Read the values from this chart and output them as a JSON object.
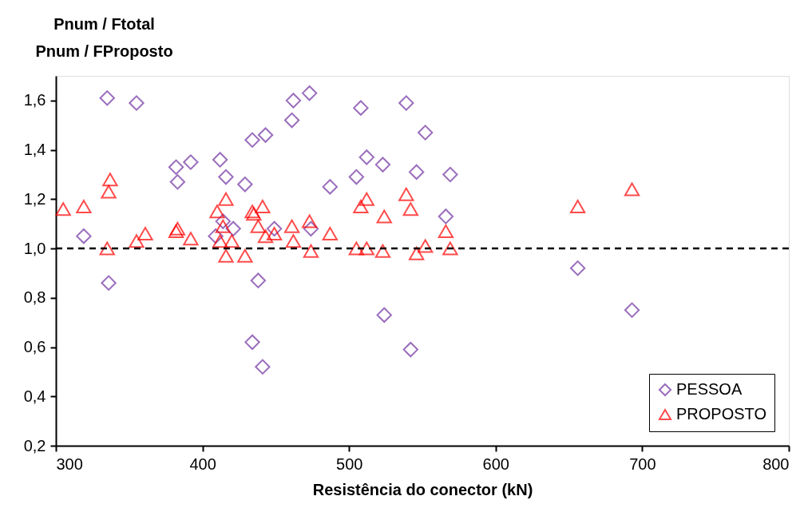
{
  "chart_data": {
    "type": "scatter",
    "xlabel": "Resistência do conector (kN)",
    "ylabel": "Pnum / Ftotal\nPnum / FProposto",
    "xlim": [
      300,
      800
    ],
    "xticks": [
      300,
      400,
      500,
      600,
      700,
      800
    ],
    "ylim": [
      0.2,
      1.7
    ],
    "yticks": [
      {
        "value": 0.2,
        "label": "0,2"
      },
      {
        "value": 0.4,
        "label": "0,4"
      },
      {
        "value": 0.6,
        "label": "0,6"
      },
      {
        "value": 0.8,
        "label": "0,8"
      },
      {
        "value": 1.0,
        "label": "1,0"
      },
      {
        "value": 1.2,
        "label": "1,2"
      },
      {
        "value": 1.4,
        "label": "1,4"
      },
      {
        "value": 1.6,
        "label": "1,6"
      }
    ],
    "grid": false,
    "legend": "bottom right",
    "ref_lines": [
      {
        "axis": "y",
        "value": 1.0,
        "color": "#000000",
        "line_style": "dashed"
      }
    ],
    "series": [
      {
        "name": "PESSOA",
        "color": "#7030a0",
        "marker": "diamond",
        "x": [
          335,
          355,
          319,
          336,
          382,
          383,
          392,
          412,
          416,
          429,
          434,
          443,
          461,
          462,
          409,
          414,
          421,
          449,
          438,
          434,
          441,
          473,
          508,
          539,
          552,
          512,
          523,
          505,
          487,
          546,
          569,
          566,
          474,
          524,
          542,
          656,
          693
        ],
        "values": [
          1.61,
          1.59,
          1.05,
          0.86,
          1.33,
          1.27,
          1.35,
          1.36,
          1.29,
          1.26,
          1.44,
          1.46,
          1.52,
          1.6,
          1.05,
          1.11,
          1.08,
          1.08,
          0.87,
          0.62,
          0.52,
          1.63,
          1.57,
          1.59,
          1.47,
          1.37,
          1.34,
          1.29,
          1.25,
          1.31,
          1.3,
          1.13,
          1.08,
          0.73,
          0.59,
          0.92,
          0.75
        ]
      },
      {
        "name": "PROPOSTO",
        "color": "#ff0000",
        "marker": "triangle",
        "x": [
          305,
          319,
          337,
          336,
          335,
          355,
          361,
          382,
          383,
          392,
          410,
          416,
          414,
          412,
          416,
          420,
          429,
          434,
          435,
          441,
          438,
          443,
          449,
          461,
          462,
          473,
          474,
          487,
          505,
          508,
          512,
          512,
          523,
          524,
          539,
          542,
          546,
          552,
          566,
          569,
          656,
          693
        ],
        "values": [
          1.16,
          1.17,
          1.28,
          1.23,
          1.0,
          1.03,
          1.06,
          1.07,
          1.08,
          1.04,
          1.15,
          1.2,
          1.09,
          1.03,
          0.97,
          1.03,
          0.97,
          1.15,
          1.14,
          1.17,
          1.09,
          1.05,
          1.06,
          1.09,
          1.03,
          1.11,
          0.99,
          1.06,
          1.0,
          1.17,
          1.2,
          1.0,
          0.99,
          1.13,
          1.22,
          1.16,
          0.98,
          1.01,
          1.07,
          1.0,
          1.17,
          1.24
        ]
      }
    ]
  }
}
